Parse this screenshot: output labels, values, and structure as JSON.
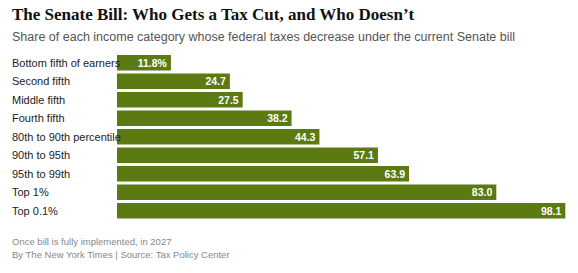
{
  "chart_data": {
    "type": "bar",
    "orientation": "horizontal",
    "title": "The Senate Bill: Who Gets a Tax Cut, and Who Doesn’t",
    "subtitle": "Share of each income category whose federal taxes decrease under the current Senate bill",
    "categories": [
      "Bottom fifth of earners",
      "Second fifth",
      "Middle fifth",
      "Fourth fifth",
      "80th to 90th percentile",
      "90th to 95th",
      "95th to 99th",
      "Top 1%",
      "Top 0.1%"
    ],
    "values": [
      11.8,
      24.7,
      27.5,
      38.2,
      44.3,
      57.1,
      63.9,
      83.0,
      98.1
    ],
    "value_labels": [
      "11.8%",
      "24.7",
      "27.5",
      "38.2",
      "44.3",
      "57.1",
      "63.9",
      "83.0",
      "98.1"
    ],
    "color": "#5b7a12",
    "xlim": [
      0,
      100
    ],
    "data_labels": true,
    "tick_labels": false,
    "grid": false,
    "annotations": [
      "Once bill is fully implemented, in 2027",
      "By The New York Times | Source: Tax Policy Center"
    ]
  }
}
